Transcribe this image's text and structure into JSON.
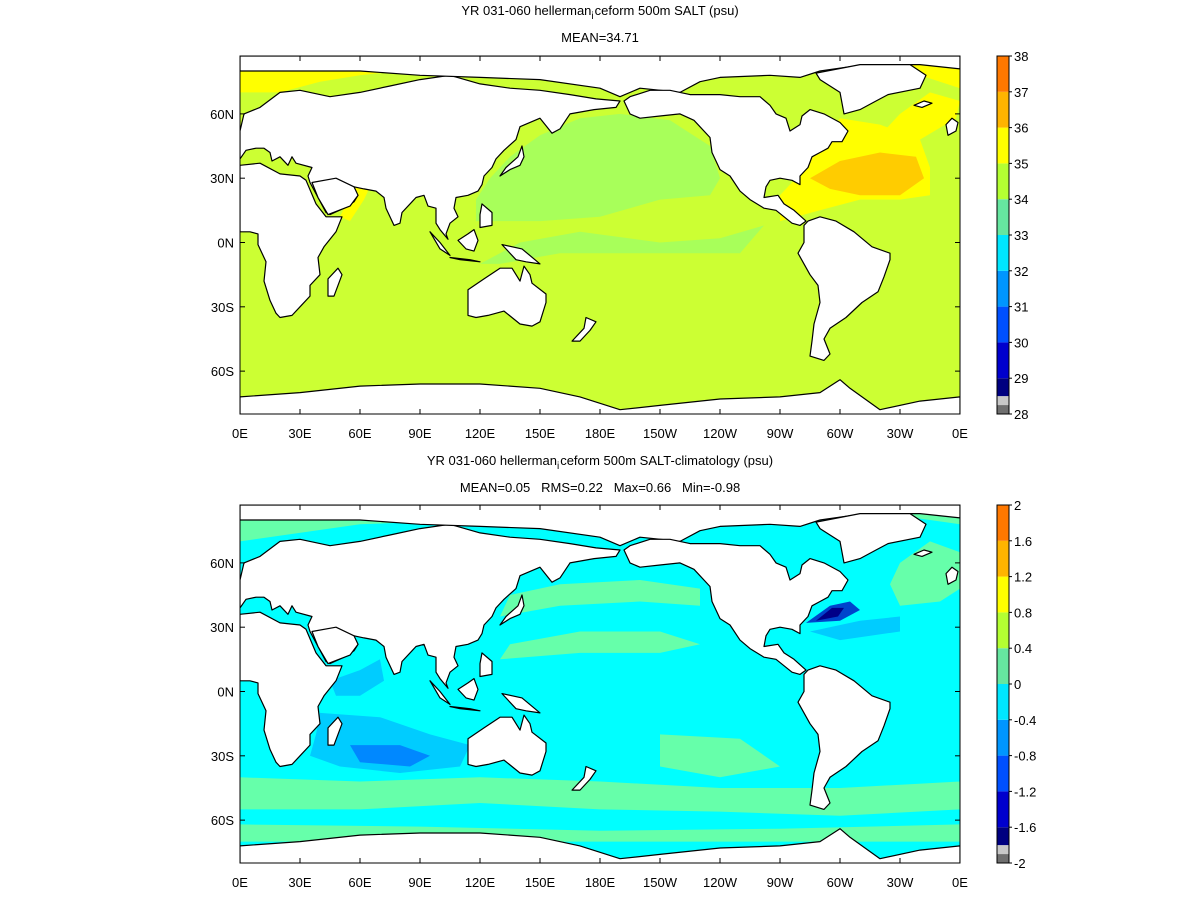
{
  "chart_data": [
    {
      "type": "heatmap",
      "title": "YR 031-060 hellerman_iceform 500m SALT (psu)",
      "title_parts": [
        "YR 031-060 hellerman",
        "i",
        "ceform 500m SALT (psu)"
      ],
      "subtitle": "MEAN=34.71",
      "x_tick_labels": [
        "0E",
        "30E",
        "60E",
        "90E",
        "120E",
        "150E",
        "180E",
        "150W",
        "120W",
        "90W",
        "60W",
        "30W",
        "0E"
      ],
      "y_tick_labels": [
        {
          "label": "60N",
          "lat": 60
        },
        {
          "label": "30N",
          "lat": 30
        },
        {
          "label": "0N",
          "lat": 0
        },
        {
          "label": "30S",
          "lat": -30
        },
        {
          "label": "60S",
          "lat": -60
        }
      ],
      "xlim": [
        0,
        360
      ],
      "ylim": [
        -80,
        87
      ],
      "colorbar": {
        "labels": [
          "28",
          "29",
          "30",
          "31",
          "32",
          "33",
          "34",
          "35",
          "36",
          "37",
          "38"
        ],
        "levels": [
          28,
          28.5,
          29,
          30,
          31,
          32,
          33,
          34,
          35,
          36,
          37,
          38
        ],
        "colors": [
          "#6f6f6f",
          "#c8c8c8",
          "#000080",
          "#0000cd",
          "#0050ff",
          "#0096ff",
          "#00e6ff",
          "#66e6a0",
          "#b4ff32",
          "#ffff00",
          "#ffb400",
          "#ff7800",
          "#ff0000"
        ]
      },
      "regions": [
        {
          "name": "Global ocean (most)",
          "value_range": [
            34,
            35
          ],
          "color": "#ccff33"
        },
        {
          "name": "North Pacific",
          "value_range": [
            33,
            34
          ],
          "color": "#a8ff5a"
        },
        {
          "name": "North Atlantic subtropical gyre",
          "value_range": [
            35.5,
            36
          ],
          "color": "#ffcc00"
        },
        {
          "name": "Arctic / subpolar North Atlantic",
          "value_range": [
            35,
            35.5
          ],
          "color": "#ffff00"
        },
        {
          "name": "Arabian Sea / Red Sea outflow",
          "value_range": [
            35,
            35.5
          ],
          "color": "#ffff00"
        }
      ]
    },
    {
      "type": "heatmap",
      "title": "YR 031-060 hellerman_iceform 500m SALT-climatology (psu)",
      "title_parts": [
        "YR 031-060 hellerman",
        "i",
        "ceform 500m SALT-climatology (psu)"
      ],
      "subtitle": "MEAN=0.05   RMS=0.22   Max=0.66   Min=-0.98",
      "stats": {
        "MEAN": 0.05,
        "RMS": 0.22,
        "Max": 0.66,
        "Min": -0.98
      },
      "x_tick_labels": [
        "0E",
        "30E",
        "60E",
        "90E",
        "120E",
        "150E",
        "180E",
        "150W",
        "120W",
        "90W",
        "60W",
        "30W",
        "0E"
      ],
      "y_tick_labels": [
        {
          "label": "60N",
          "lat": 60
        },
        {
          "label": "30N",
          "lat": 30
        },
        {
          "label": "0N",
          "lat": 0
        },
        {
          "label": "30S",
          "lat": -30
        },
        {
          "label": "60S",
          "lat": -60
        }
      ],
      "xlim": [
        0,
        360
      ],
      "ylim": [
        -80,
        87
      ],
      "colorbar": {
        "labels": [
          "-2",
          "-1.6",
          "-1.2",
          "-0.8",
          "-0.4",
          "0",
          "0.4",
          "0.8",
          "1.2",
          "1.6",
          "2"
        ],
        "levels": [
          -2,
          -1.8,
          -1.6,
          -1.2,
          -0.8,
          -0.4,
          0,
          0.4,
          0.8,
          1.2,
          1.6,
          2
        ],
        "colors": [
          "#6f6f6f",
          "#c8c8c8",
          "#000080",
          "#0000cd",
          "#0050ff",
          "#0096ff",
          "#00e6ff",
          "#66e6a0",
          "#b4ff32",
          "#ffff00",
          "#ffb400",
          "#ff7800",
          "#ff0000"
        ]
      },
      "regions": [
        {
          "name": "Tropical / subtropical ocean",
          "value_range": [
            0,
            0.2
          ],
          "color": "#00ffff"
        },
        {
          "name": "Southern Ocean bands",
          "value_range": [
            0.2,
            0.4
          ],
          "color": "#66ffaa"
        },
        {
          "name": "North Pacific bands",
          "value_range": [
            0.2,
            0.4
          ],
          "color": "#66ffaa"
        },
        {
          "name": "South Indian Ocean",
          "value_range": [
            -0.4,
            -0.2
          ],
          "color": "#00ccff"
        },
        {
          "name": "Gulf Stream region",
          "value_range": [
            -0.98,
            -0.6
          ],
          "color": "#0044cc"
        }
      ]
    }
  ]
}
